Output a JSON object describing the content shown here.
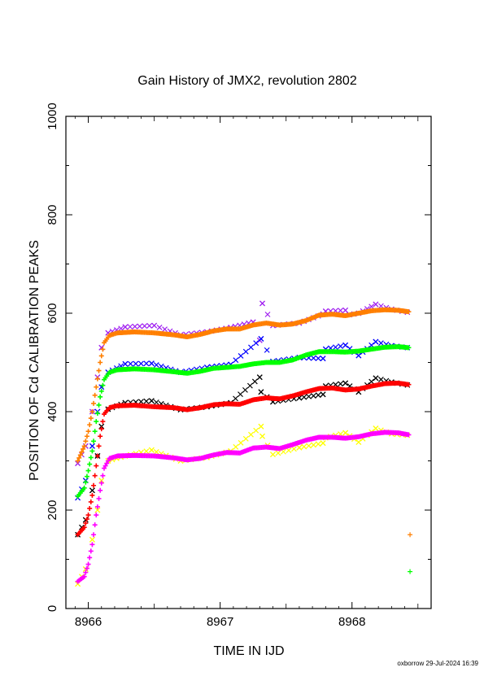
{
  "chart_data": {
    "type": "scatter",
    "title": "Gain History of JMX2, revolution 2802",
    "xlabel": "TIME IN IJD",
    "ylabel": "POSITION OF Cd CALIBRATION PEAKS",
    "xlim": [
      8965.83,
      8968.6
    ],
    "ylim": [
      0,
      1000
    ],
    "x_ticks": [
      8966,
      8967,
      8968
    ],
    "x_tick_labels": [
      "8966",
      "8967",
      "8968"
    ],
    "y_ticks": [
      0,
      200,
      400,
      600,
      800,
      1000
    ],
    "y_tick_labels": [
      "0",
      "200",
      "400",
      "600",
      "800",
      "1000"
    ],
    "grid": false,
    "footer": "oxborrow 29-Jul-2024 16:39",
    "series": [
      {
        "color": "#a020f0",
        "marker": "x",
        "points": [
          [
            8965.92,
            295
          ],
          [
            8965.98,
            330
          ],
          [
            8966.03,
            400
          ],
          [
            8966.07,
            470
          ],
          [
            8966.1,
            530
          ],
          [
            8966.15,
            560
          ],
          [
            8966.28,
            572
          ],
          [
            8966.5,
            575
          ],
          [
            8966.7,
            556
          ],
          [
            8966.9,
            562
          ],
          [
            8967.08,
            571
          ],
          [
            8967.25,
            582
          ],
          [
            8967.32,
            620
          ],
          [
            8967.3,
            545
          ],
          [
            8967.4,
            575
          ],
          [
            8967.6,
            580
          ],
          [
            8967.78,
            598
          ],
          [
            8967.8,
            604
          ],
          [
            8967.95,
            606
          ],
          [
            8967.98,
            597
          ],
          [
            8968.05,
            600
          ],
          [
            8968.18,
            618
          ],
          [
            8968.3,
            608
          ],
          [
            8968.42,
            602
          ]
        ]
      },
      {
        "color": "#ff7f00",
        "marker": "+",
        "points": [
          [
            8965.92,
            300
          ],
          [
            8965.97,
            330
          ],
          [
            8966.0,
            360
          ],
          [
            8966.03,
            400
          ],
          [
            8966.06,
            450
          ],
          [
            8966.09,
            500
          ],
          [
            8966.12,
            540
          ],
          [
            8966.16,
            555
          ],
          [
            8966.22,
            560
          ],
          [
            8966.35,
            562
          ],
          [
            8966.5,
            560
          ],
          [
            8966.65,
            556
          ],
          [
            8966.75,
            552
          ],
          [
            8966.85,
            557
          ],
          [
            8966.95,
            564
          ],
          [
            8967.05,
            568
          ],
          [
            8967.15,
            568
          ],
          [
            8967.25,
            576
          ],
          [
            8967.35,
            580
          ],
          [
            8967.45,
            576
          ],
          [
            8967.55,
            578
          ],
          [
            8967.65,
            585
          ],
          [
            8967.75,
            596
          ],
          [
            8967.85,
            598
          ],
          [
            8967.95,
            595
          ],
          [
            8968.05,
            600
          ],
          [
            8968.15,
            605
          ],
          [
            8968.25,
            607
          ],
          [
            8968.35,
            606
          ],
          [
            8968.43,
            603
          ],
          [
            8968.44,
            150
          ]
        ]
      },
      {
        "color": "#0000ff",
        "marker": "x",
        "points": [
          [
            8965.92,
            225
          ],
          [
            8965.98,
            260
          ],
          [
            8966.03,
            330
          ],
          [
            8966.07,
            400
          ],
          [
            8966.1,
            450
          ],
          [
            8966.15,
            480
          ],
          [
            8966.28,
            497
          ],
          [
            8966.48,
            498
          ],
          [
            8966.7,
            480
          ],
          [
            8966.9,
            490
          ],
          [
            8967.08,
            496
          ],
          [
            8967.31,
            548
          ],
          [
            8967.4,
            502
          ],
          [
            8967.6,
            510
          ],
          [
            8967.78,
            508
          ],
          [
            8967.8,
            527
          ],
          [
            8967.95,
            535
          ],
          [
            8968.05,
            514
          ],
          [
            8968.18,
            542
          ],
          [
            8968.3,
            534
          ],
          [
            8968.42,
            530
          ]
        ]
      },
      {
        "color": "#00ff00",
        "marker": "+",
        "points": [
          [
            8965.92,
            228
          ],
          [
            8965.97,
            245
          ],
          [
            8966.0,
            280
          ],
          [
            8966.03,
            320
          ],
          [
            8966.06,
            380
          ],
          [
            8966.09,
            430
          ],
          [
            8966.12,
            465
          ],
          [
            8966.16,
            480
          ],
          [
            8966.22,
            485
          ],
          [
            8966.35,
            487
          ],
          [
            8966.5,
            485
          ],
          [
            8966.65,
            481
          ],
          [
            8966.75,
            478
          ],
          [
            8966.85,
            482
          ],
          [
            8966.95,
            488
          ],
          [
            8967.05,
            490
          ],
          [
            8967.15,
            492
          ],
          [
            8967.25,
            497
          ],
          [
            8967.35,
            500
          ],
          [
            8967.45,
            500
          ],
          [
            8967.55,
            505
          ],
          [
            8967.65,
            515
          ],
          [
            8967.75,
            522
          ],
          [
            8967.85,
            522
          ],
          [
            8967.95,
            521
          ],
          [
            8968.05,
            523
          ],
          [
            8968.15,
            527
          ],
          [
            8968.25,
            531
          ],
          [
            8968.35,
            532
          ],
          [
            8968.43,
            530
          ],
          [
            8968.44,
            75
          ]
        ]
      },
      {
        "color": "#000000",
        "marker": "x",
        "points": [
          [
            8965.92,
            150
          ],
          [
            8965.98,
            180
          ],
          [
            8966.03,
            240
          ],
          [
            8966.07,
            310
          ],
          [
            8966.1,
            370
          ],
          [
            8966.15,
            405
          ],
          [
            8966.28,
            418
          ],
          [
            8966.48,
            422
          ],
          [
            8966.7,
            404
          ],
          [
            8966.9,
            410
          ],
          [
            8967.08,
            418
          ],
          [
            8967.3,
            470
          ],
          [
            8967.31,
            440
          ],
          [
            8967.4,
            420
          ],
          [
            8967.6,
            428
          ],
          [
            8967.78,
            435
          ],
          [
            8967.8,
            452
          ],
          [
            8967.95,
            458
          ],
          [
            8968.05,
            440
          ],
          [
            8968.18,
            468
          ],
          [
            8968.3,
            460
          ],
          [
            8968.42,
            454
          ]
        ]
      },
      {
        "color": "#ff0000",
        "marker": "+",
        "points": [
          [
            8965.92,
            150
          ],
          [
            8965.97,
            165
          ],
          [
            8966.0,
            190
          ],
          [
            8966.03,
            230
          ],
          [
            8966.06,
            290
          ],
          [
            8966.09,
            350
          ],
          [
            8966.12,
            395
          ],
          [
            8966.16,
            408
          ],
          [
            8966.22,
            412
          ],
          [
            8966.35,
            413
          ],
          [
            8966.5,
            410
          ],
          [
            8966.65,
            408
          ],
          [
            8966.75,
            404
          ],
          [
            8966.85,
            408
          ],
          [
            8966.95,
            414
          ],
          [
            8967.05,
            416
          ],
          [
            8967.15,
            415
          ],
          [
            8967.25,
            424
          ],
          [
            8967.35,
            428
          ],
          [
            8967.45,
            426
          ],
          [
            8967.55,
            432
          ],
          [
            8967.65,
            440
          ],
          [
            8967.75,
            447
          ],
          [
            8967.85,
            448
          ],
          [
            8967.95,
            444
          ],
          [
            8968.05,
            446
          ],
          [
            8968.15,
            452
          ],
          [
            8968.25,
            457
          ],
          [
            8968.35,
            458
          ],
          [
            8968.43,
            455
          ]
        ]
      },
      {
        "color": "#ffff00",
        "marker": "x",
        "points": [
          [
            8965.92,
            50
          ],
          [
            8965.98,
            80
          ],
          [
            8966.03,
            140
          ],
          [
            8966.07,
            200
          ],
          [
            8966.1,
            260
          ],
          [
            8966.15,
            300
          ],
          [
            8966.28,
            310
          ],
          [
            8966.48,
            322
          ],
          [
            8966.7,
            300
          ],
          [
            8966.9,
            307
          ],
          [
            8967.08,
            320
          ],
          [
            8967.31,
            370
          ],
          [
            8967.32,
            350
          ],
          [
            8967.4,
            313
          ],
          [
            8967.6,
            327
          ],
          [
            8967.78,
            336
          ],
          [
            8967.8,
            347
          ],
          [
            8967.95,
            357
          ],
          [
            8968.05,
            338
          ],
          [
            8968.18,
            366
          ],
          [
            8968.3,
            355
          ],
          [
            8968.42,
            352
          ]
        ]
      },
      {
        "color": "#ff00ff",
        "marker": "+",
        "points": [
          [
            8965.92,
            55
          ],
          [
            8965.97,
            65
          ],
          [
            8966.0,
            90
          ],
          [
            8966.03,
            130
          ],
          [
            8966.06,
            190
          ],
          [
            8966.09,
            240
          ],
          [
            8966.12,
            285
          ],
          [
            8966.16,
            305
          ],
          [
            8966.22,
            310
          ],
          [
            8966.35,
            311
          ],
          [
            8966.5,
            310
          ],
          [
            8966.65,
            306
          ],
          [
            8966.75,
            302
          ],
          [
            8966.85,
            305
          ],
          [
            8966.95,
            312
          ],
          [
            8967.05,
            317
          ],
          [
            8967.15,
            316
          ],
          [
            8967.25,
            326
          ],
          [
            8967.35,
            328
          ],
          [
            8967.45,
            325
          ],
          [
            8967.55,
            333
          ],
          [
            8967.65,
            342
          ],
          [
            8967.75,
            348
          ],
          [
            8967.85,
            348
          ],
          [
            8967.95,
            346
          ],
          [
            8968.05,
            349
          ],
          [
            8968.15,
            355
          ],
          [
            8968.25,
            358
          ],
          [
            8968.35,
            357
          ],
          [
            8968.43,
            353
          ]
        ]
      }
    ]
  }
}
